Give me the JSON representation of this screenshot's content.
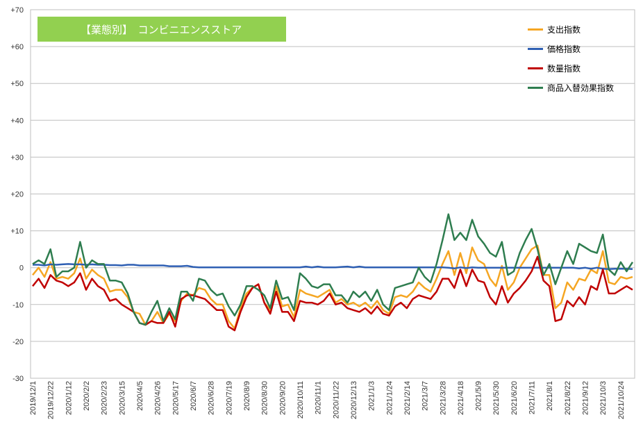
{
  "chart_data": {
    "type": "line",
    "title": "【業態別】　コンビニエンスストア",
    "ylim": [
      -30,
      70
    ],
    "yticks": [
      -30,
      -20,
      -10,
      0,
      10,
      20,
      30,
      40,
      50,
      60,
      70
    ],
    "ytick_labels": [
      "-30",
      "-20",
      "-10",
      "0",
      "+10",
      "+20",
      "+30",
      "+40",
      "+50",
      "+60",
      "+70"
    ],
    "x_labels": [
      "2019/12/1",
      "2019/12/22",
      "2020/1/12",
      "2020/2/2",
      "2020/2/23",
      "2020/3/15",
      "2020/4/5",
      "2020/4/26",
      "2020/5/17",
      "2020/6/7",
      "2020/6/28",
      "2020/7/19",
      "2020/8/9",
      "2020/8/30",
      "2020/9/20",
      "2020/10/11",
      "2020/11/1",
      "2020/11/22",
      "2020/12/13",
      "2021/1/3",
      "2021/1/24",
      "2021/2/14",
      "2021/3/7",
      "2021/3/28",
      "2021/4/18",
      "2021/5/9",
      "2021/5/30",
      "2021/6/20",
      "2021/7/11",
      "2021/8/1",
      "2021/8/22",
      "2021/9/12",
      "2021/10/3",
      "2021/10/24"
    ],
    "legend_position": "top-right",
    "grid": true,
    "series": [
      {
        "name": "支出指数",
        "color": "#f5a623",
        "values": [
          -2.0,
          0.0,
          -2.5,
          1.5,
          -3.0,
          -2.5,
          -3.0,
          -1.5,
          2.5,
          -3.0,
          -0.5,
          -2.0,
          -3.0,
          -6.5,
          -6.0,
          -6.0,
          -8.0,
          -12.0,
          -12.5,
          -15.5,
          -14.5,
          -12.0,
          -15.0,
          -12.5,
          -14.5,
          -9.0,
          -7.0,
          -7.5,
          -5.5,
          -6.0,
          -8.5,
          -10.0,
          -10.0,
          -14.5,
          -16.5,
          -11.0,
          -7.0,
          -5.5,
          -4.5,
          -9.5,
          -11.5,
          -5.0,
          -10.5,
          -10.0,
          -13.5,
          -6.0,
          -7.0,
          -7.5,
          -8.0,
          -7.0,
          -6.0,
          -9.5,
          -8.5,
          -10.0,
          -9.5,
          -10.5,
          -9.5,
          -11.0,
          -9.0,
          -11.5,
          -12.5,
          -8.0,
          -7.5,
          -8.0,
          -6.5,
          -4.0,
          -5.5,
          -6.5,
          -3.0,
          1.0,
          4.5,
          -2.0,
          4.0,
          -1.5,
          5.5,
          2.0,
          1.0,
          -3.0,
          -5.0,
          0.5,
          -6.0,
          -4.0,
          0.0,
          2.5,
          5.0,
          6.0,
          -2.0,
          -2.0,
          -11.0,
          -9.5,
          -4.0,
          -6.0,
          -3.0,
          -3.5,
          -0.5,
          -1.5,
          4.5,
          -4.0,
          -4.5,
          -2.5,
          -3.0,
          -2.5
        ]
      },
      {
        "name": "価格指数",
        "color": "#2e5fb3",
        "values": [
          0.8,
          0.8,
          0.6,
          0.9,
          0.8,
          0.9,
          1.0,
          0.9,
          0.9,
          0.8,
          0.9,
          0.8,
          0.8,
          0.7,
          0.7,
          0.6,
          0.8,
          0.8,
          0.6,
          0.6,
          0.6,
          0.6,
          0.6,
          0.4,
          0.4,
          0.4,
          0.5,
          0.2,
          0.1,
          0.1,
          0.1,
          0.1,
          0.1,
          0.1,
          0.1,
          0.1,
          0.1,
          0.1,
          0.1,
          0.1,
          0.1,
          0.1,
          0.1,
          0.1,
          0.1,
          0.1,
          0.3,
          0.1,
          0.3,
          0.1,
          0.1,
          0.1,
          0.2,
          0.3,
          0.1,
          0.3,
          0.1,
          0.1,
          0.1,
          0.1,
          0.1,
          0.1,
          0.1,
          0.1,
          0.1,
          0.1,
          0.1,
          0.1,
          0.1,
          0.1,
          0.0,
          -0.2,
          0.1,
          -0.1,
          0.1,
          0.0,
          0.0,
          0.0,
          0.0,
          0.0,
          0.0,
          0.0,
          0.0,
          0.0,
          0.0,
          0.0,
          0.0,
          0.0,
          0.0,
          0.0,
          0.0,
          0.0,
          -0.2,
          0.0,
          -0.3,
          0.0,
          -0.3,
          -0.4,
          -0.3,
          -0.3,
          -0.3,
          -0.4
        ]
      },
      {
        "name": "数量指数",
        "color": "#c00000",
        "values": [
          -5.0,
          -3.0,
          -5.5,
          -2.0,
          -3.5,
          -4.0,
          -5.0,
          -4.0,
          -1.5,
          -6.0,
          -3.0,
          -5.0,
          -6.0,
          -9.0,
          -8.5,
          -10.0,
          -11.0,
          -12.0,
          -15.0,
          -15.5,
          -14.5,
          -15.0,
          -15.0,
          -12.0,
          -16.0,
          -8.5,
          -7.5,
          -7.5,
          -8.0,
          -8.5,
          -10.0,
          -11.5,
          -11.5,
          -16.0,
          -17.0,
          -12.0,
          -8.0,
          -5.5,
          -4.5,
          -9.5,
          -12.5,
          -6.5,
          -12.0,
          -12.0,
          -14.5,
          -9.0,
          -9.5,
          -9.5,
          -10.0,
          -9.0,
          -7.0,
          -10.0,
          -9.5,
          -11.0,
          -11.5,
          -12.0,
          -11.0,
          -12.5,
          -10.5,
          -12.5,
          -13.0,
          -10.5,
          -9.5,
          -11.0,
          -8.5,
          -7.5,
          -8.0,
          -8.5,
          -6.5,
          -3.0,
          -3.0,
          -5.5,
          -0.5,
          -5.0,
          -0.5,
          -3.5,
          -4.0,
          -8.0,
          -10.0,
          -5.0,
          -9.5,
          -7.0,
          -5.5,
          -3.5,
          -1.0,
          3.0,
          -3.5,
          -5.0,
          -14.5,
          -14.0,
          -9.0,
          -10.5,
          -8.0,
          -10.0,
          -5.0,
          -6.0,
          -0.5,
          -7.0,
          -7.0,
          -6.0,
          -5.0,
          -6.0
        ]
      },
      {
        "name": "商品入替効果指数",
        "color": "#2e7d4f",
        "values": [
          1.0,
          2.0,
          1.0,
          5.0,
          -2.5,
          -1.0,
          -1.0,
          0.0,
          7.0,
          0.0,
          2.0,
          1.0,
          1.0,
          -3.5,
          -3.5,
          -4.0,
          -7.0,
          -12.0,
          -15.0,
          -15.5,
          -12.0,
          -9.0,
          -14.5,
          -11.0,
          -14.0,
          -6.5,
          -6.5,
          -9.0,
          -3.0,
          -3.5,
          -6.0,
          -7.5,
          -7.0,
          -10.5,
          -13.0,
          -10.0,
          -5.0,
          -5.0,
          -6.0,
          -7.5,
          -11.0,
          -3.5,
          -8.5,
          -8.0,
          -11.5,
          -1.5,
          -3.0,
          -5.0,
          -5.5,
          -4.5,
          -4.5,
          -7.5,
          -7.5,
          -9.5,
          -6.5,
          -8.0,
          -6.5,
          -9.0,
          -6.0,
          -10.0,
          -11.5,
          -5.5,
          -5.0,
          -4.5,
          -4.0,
          0.0,
          -2.5,
          -4.0,
          1.0,
          7.5,
          14.5,
          7.5,
          9.5,
          7.5,
          13.0,
          8.5,
          6.5,
          4.0,
          3.0,
          7.0,
          -2.0,
          -1.0,
          4.0,
          7.5,
          10.5,
          5.0,
          -2.0,
          1.0,
          -4.5,
          0.0,
          4.5,
          1.0,
          6.5,
          5.5,
          4.5,
          4.0,
          9.0,
          -0.5,
          -2.0,
          1.5,
          -1.0,
          1.5
        ]
      }
    ]
  }
}
